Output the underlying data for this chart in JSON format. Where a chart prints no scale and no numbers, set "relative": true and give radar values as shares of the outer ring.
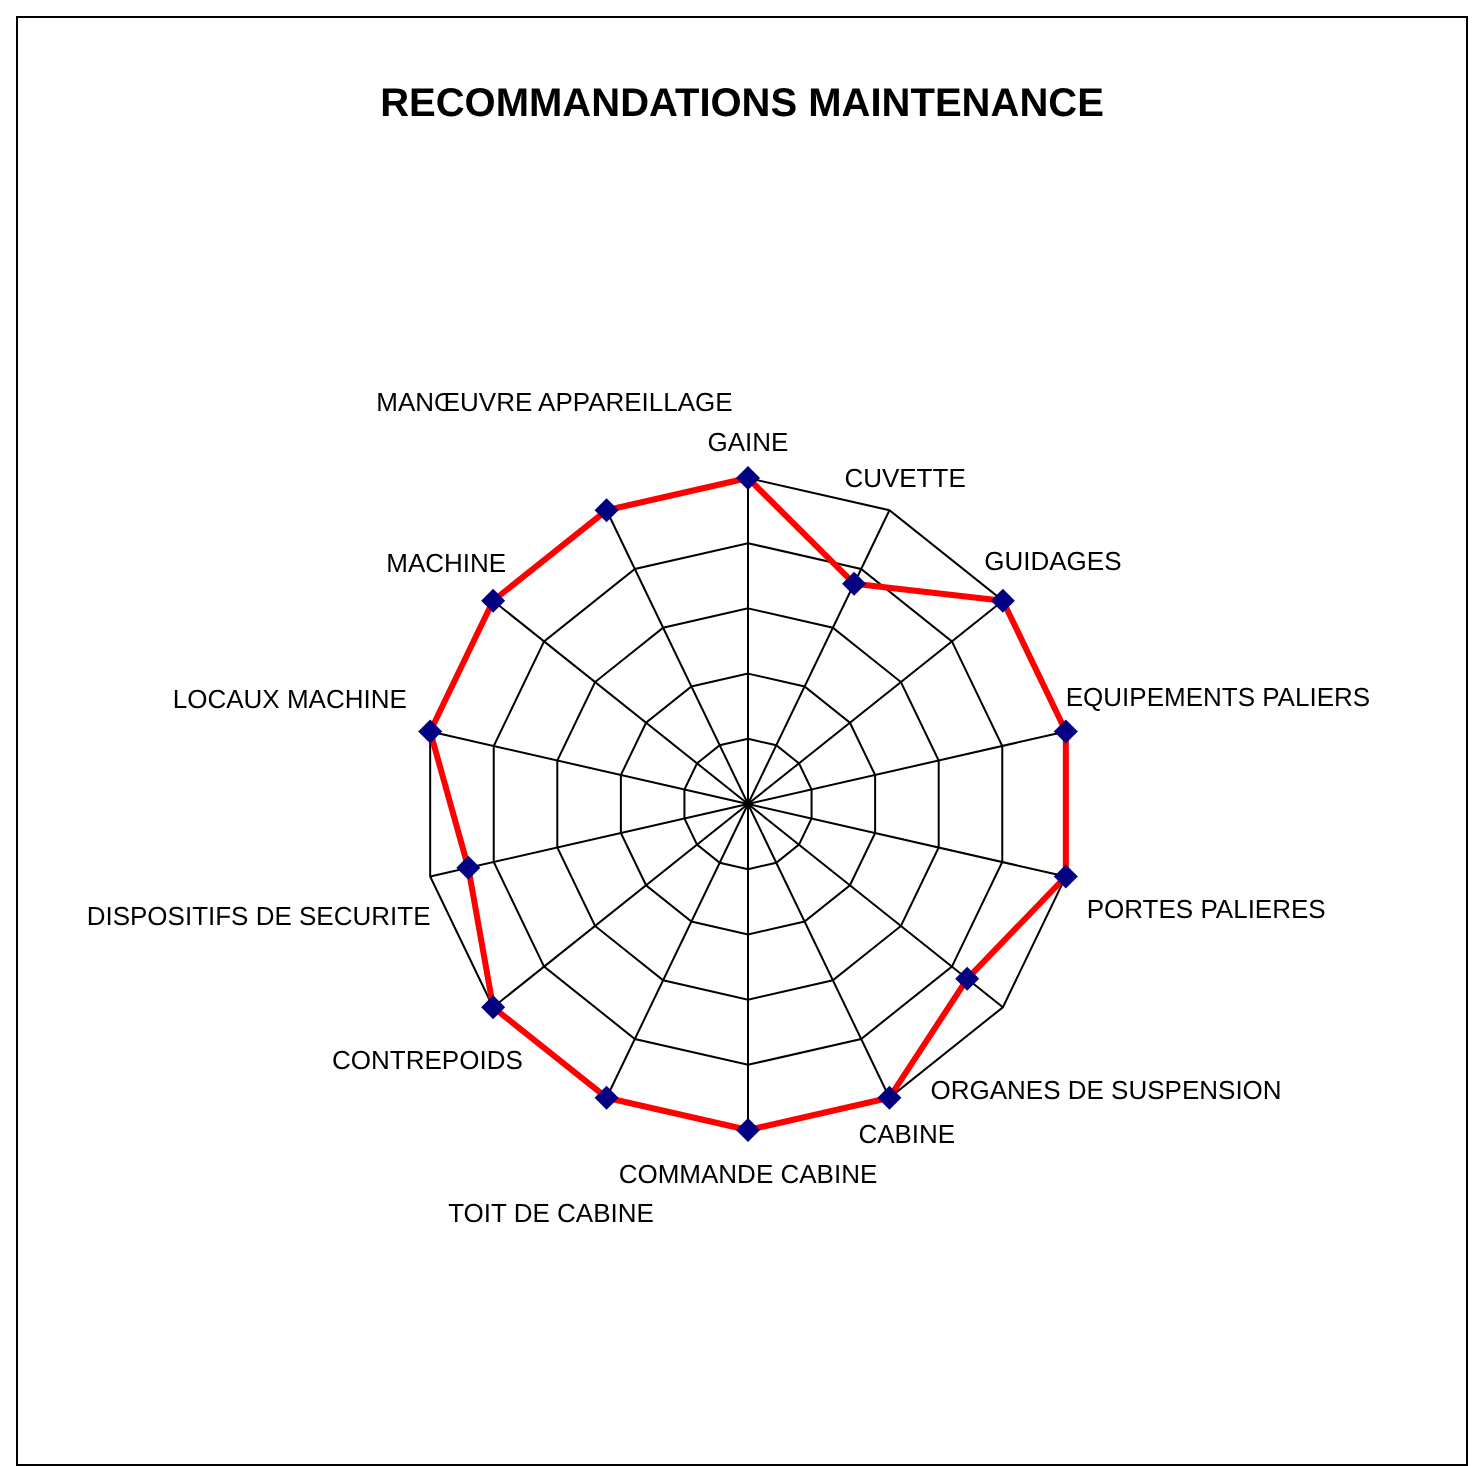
{
  "chart_data": {
    "type": "radar",
    "title": "RECOMMANDATIONS MAINTENANCE",
    "relative": true,
    "categories": [
      "GAINE",
      "CUVETTE",
      "GUIDAGES",
      "EQUIPEMENTS PALIERS",
      "PORTES PALIERES",
      "ORGANES DE SUSPENSION",
      "CABINE",
      "COMMANDE CABINE",
      "TOIT DE CABINE",
      "CONTREPOIDS",
      "DISPOSITIFS DE SECURITE",
      "LOCAUX MACHINE",
      "MACHINE",
      "MANŒUVRE APPAREILLAGE"
    ],
    "series": [
      {
        "color": "#ff0000",
        "values": [
          1,
          0.75,
          1,
          1,
          1,
          0.86,
          1,
          1,
          1,
          1,
          0.88,
          1,
          1,
          1
        ]
      }
    ],
    "marker": "diamond",
    "legend": false
  }
}
